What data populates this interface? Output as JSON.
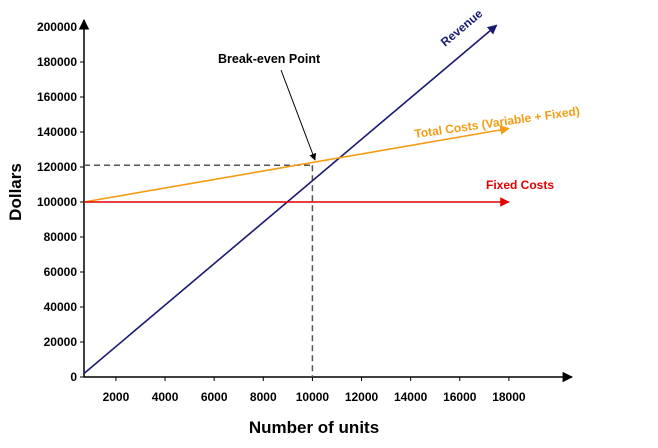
{
  "chart_data": {
    "type": "line",
    "title": "",
    "xlabel": "Number of units",
    "ylabel": "Dollars",
    "xlim": [
      700,
      18800
    ],
    "ylim": [
      0,
      200000
    ],
    "x_ticks": [
      "2000",
      "4000",
      "6000",
      "8000",
      "10000",
      "12000",
      "14000",
      "16000",
      "18000"
    ],
    "y_ticks": [
      "0",
      "20000",
      "40000",
      "60000",
      "80000",
      "100000",
      "120000",
      "140000",
      "160000",
      "180000",
      "200000"
    ],
    "grid": false,
    "series": [
      {
        "name": "Revenue",
        "color": "#1a1a73",
        "points": [
          [
            700,
            2000
          ],
          [
            17500,
            201000
          ]
        ]
      },
      {
        "name": "Total Costs (Variable + Fixed)",
        "color": "#f39c12",
        "points": [
          [
            700,
            100000
          ],
          [
            18000,
            142000
          ]
        ]
      },
      {
        "name": "Fixed Costs",
        "color": "#e00000",
        "points": [
          [
            700,
            100000
          ],
          [
            18000,
            100000
          ]
        ]
      }
    ],
    "annotations": [
      {
        "text": "Break-even Point",
        "x": 10000,
        "y": 121000
      }
    ],
    "reference_lines": {
      "x": 10000,
      "y": 121000,
      "style": "dashed",
      "color": "#555555"
    }
  }
}
